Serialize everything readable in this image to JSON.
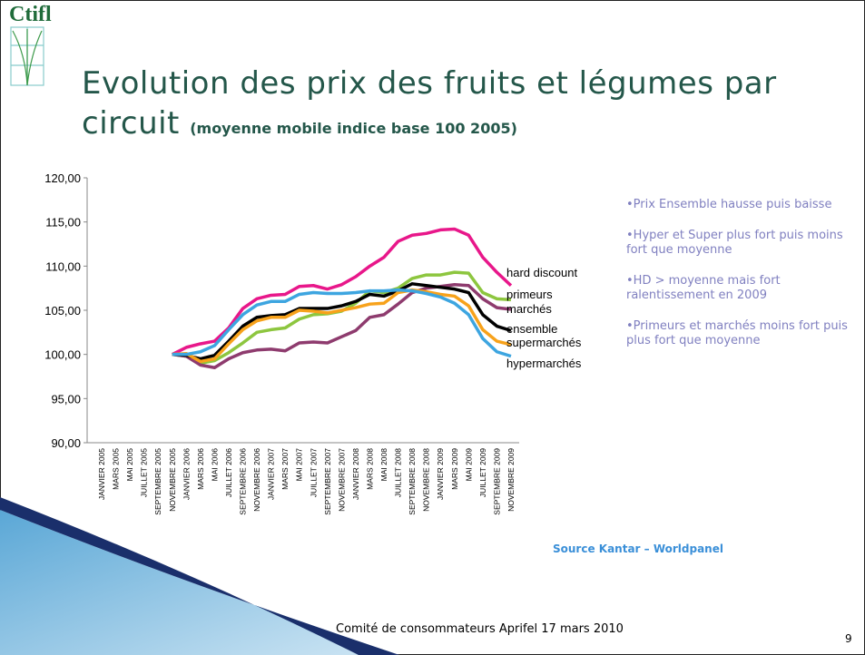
{
  "slide": {
    "logo": "Ctifl",
    "title": "Evolution des prix des fruits et légumes par circuit",
    "subtitle": "(moyenne mobile indice base 100 2005)",
    "notes": [
      "•Prix Ensemble hausse puis baisse",
      "•Hyper et Super plus fort puis moins fort que moyenne",
      "•HD > moyenne mais fort ralentissement en 2009",
      "•Primeurs et marchés moins fort puis plus fort que moyenne"
    ],
    "source": "Source Kantar – Worldpanel",
    "footer": "Comité de consommateurs Aprifel 17 mars 2010",
    "page_number": "9"
  },
  "chart_data": {
    "type": "line",
    "categories": [
      "JANVIER  2005",
      "MARS  2005",
      "MAI  2005",
      "JUILLET  2005",
      "SEPTEMBRE  2005",
      "NOVEMBRE  2005",
      "JANVIER  2006",
      "MARS  2006",
      "MAI  2006",
      "JUILLET  2006",
      "SEPTEMBRE  2006",
      "NOVEMBRE  2006",
      "JANVIER  2007",
      "MARS  2007",
      "MAI  2007",
      "JUILLET  2007",
      "SEPTEMBRE  2007",
      "NOVEMBRE  2007",
      "JANVIER  2008",
      "MARS  2008",
      "MAI  2008",
      "JUILLET  2008",
      "SEPTEMBRE  2008",
      "NOVEMBRE  2008",
      "JANVIER  2009",
      "MARS  2009",
      "MAI  2009",
      "JUILLET  2009",
      "SEPTEMBRE  2009",
      "NOVEMBRE  2009"
    ],
    "ylim": [
      90,
      120
    ],
    "yticks": [
      {
        "value": 90,
        "label": "90,00"
      },
      {
        "value": 95,
        "label": "95,00"
      },
      {
        "value": 100,
        "label": "100,00"
      },
      {
        "value": 105,
        "label": "105,00"
      },
      {
        "value": 110,
        "label": "110,00"
      },
      {
        "value": 115,
        "label": "115,00"
      },
      {
        "value": 120,
        "label": "120,00"
      }
    ],
    "grid": false,
    "series": [
      {
        "name": "hard discount",
        "color": "#e8178a",
        "values": [
          null,
          null,
          null,
          null,
          null,
          100,
          100.8,
          101.2,
          101.5,
          103,
          105.2,
          106.3,
          106.7,
          106.8,
          107.7,
          107.8,
          107.4,
          107.9,
          108.8,
          110,
          111,
          112.8,
          113.5,
          113.7,
          114.1,
          114.2,
          113.5,
          111,
          109.3,
          107.8
        ]
      },
      {
        "name": "primeurs",
        "color": "#8dc63f",
        "values": [
          null,
          null,
          null,
          null,
          null,
          100,
          99.8,
          99,
          99.3,
          100.2,
          101.3,
          102.5,
          102.8,
          103,
          104,
          104.5,
          104.6,
          104.9,
          105.8,
          107.2,
          107,
          107.5,
          108.6,
          109,
          109,
          109.3,
          109.2,
          107,
          106.3,
          106.2
        ]
      },
      {
        "name": "marchés",
        "color": "#8e3b6e",
        "values": [
          null,
          null,
          null,
          null,
          null,
          100,
          99.8,
          98.8,
          98.5,
          99.5,
          100.2,
          100.5,
          100.6,
          100.4,
          101.3,
          101.4,
          101.3,
          102,
          102.7,
          104.2,
          104.5,
          105.7,
          107,
          107.5,
          107.7,
          107.9,
          107.8,
          106.3,
          105.3,
          105.1
        ]
      },
      {
        "name": "ensemble",
        "color": "#000000",
        "values": [
          null,
          null,
          null,
          null,
          null,
          100,
          99.9,
          99.5,
          99.9,
          101.5,
          103.2,
          104.2,
          104.4,
          104.5,
          105.2,
          105.2,
          105.2,
          105.5,
          106,
          106.8,
          106.6,
          107.2,
          108,
          107.8,
          107.6,
          107.4,
          107,
          104.5,
          103.2,
          102.7
        ]
      },
      {
        "name": "supermarchés",
        "color": "#f7a21b",
        "values": [
          null,
          null,
          null,
          null,
          null,
          100,
          100.1,
          99.2,
          99.5,
          101.2,
          102.8,
          103.8,
          104.2,
          104.2,
          105,
          104.9,
          104.7,
          105,
          105.3,
          105.7,
          105.8,
          107,
          107.3,
          107.1,
          106.8,
          106.6,
          105.5,
          102.8,
          101.5,
          101.1
        ]
      },
      {
        "name": "hypermarchés",
        "color": "#3da5e0",
        "values": [
          null,
          null,
          null,
          null,
          null,
          100,
          100,
          100.3,
          101,
          102.8,
          104.5,
          105.6,
          106,
          106,
          106.8,
          107,
          106.9,
          106.9,
          107,
          107.2,
          107.2,
          107.3,
          107.2,
          106.9,
          106.5,
          105.8,
          104.5,
          101.8,
          100.3,
          99.8
        ]
      }
    ]
  }
}
